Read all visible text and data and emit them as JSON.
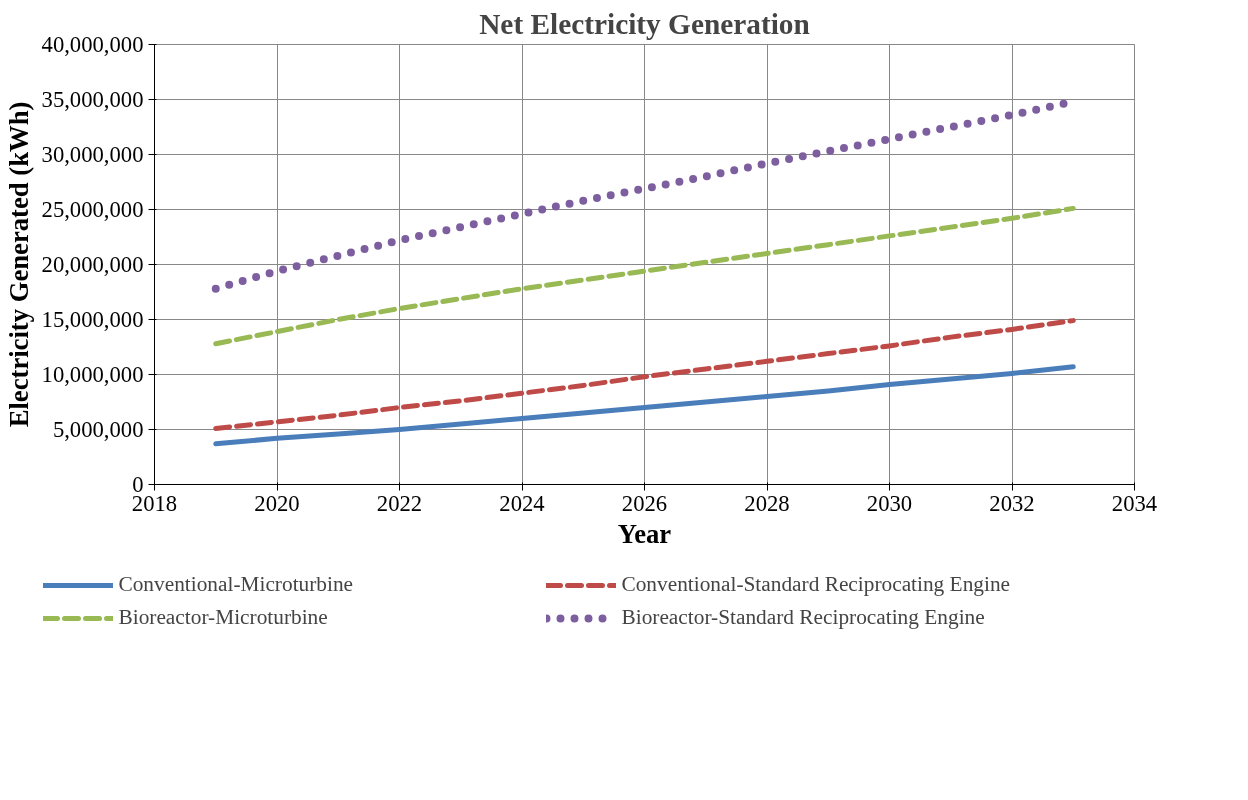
{
  "chart_data": {
    "type": "line",
    "title": "Net Electricity Generation",
    "xlabel": "Year",
    "ylabel": "Electricity Generated (kWh)",
    "x": [
      2019,
      2020,
      2021,
      2022,
      2023,
      2024,
      2025,
      2026,
      2027,
      2028,
      2029,
      2030,
      2031,
      2032,
      2033
    ],
    "series": [
      {
        "name": "Conventional-Microturbine",
        "color": "#4a7ebb",
        "line_style": "solid",
        "values": [
          3700000,
          4200000,
          4600000,
          5000000,
          5500000,
          6000000,
          6500000,
          7000000,
          7500000,
          8000000,
          8500000,
          9100000,
          9600000,
          10100000,
          10700000
        ]
      },
      {
        "name": "Conventional-Standard Reciprocating Engine",
        "color": "#be4b48",
        "line_style": "dashed",
        "values": [
          5100000,
          5700000,
          6300000,
          7000000,
          7600000,
          8300000,
          9000000,
          9800000,
          10500000,
          11200000,
          11900000,
          12600000,
          13400000,
          14100000,
          14900000
        ]
      },
      {
        "name": "Bioreactor-Microturbine",
        "color": "#98b954",
        "line_style": "dashed",
        "values": [
          12800000,
          13900000,
          15000000,
          16000000,
          16900000,
          17800000,
          18600000,
          19400000,
          20200000,
          21000000,
          21800000,
          22600000,
          23400000,
          24200000,
          25100000
        ]
      },
      {
        "name": "Bioreactor-Standard Reciprocating Engine",
        "color": "#7d5fa0",
        "line_style": "dotted",
        "values": [
          17800000,
          19400000,
          20800000,
          22200000,
          23400000,
          24600000,
          25800000,
          26900000,
          28000000,
          29200000,
          30300000,
          31400000,
          32500000,
          33600000,
          34800000
        ]
      }
    ],
    "xlim": [
      2018,
      2034
    ],
    "xticks": [
      2018,
      2020,
      2022,
      2024,
      2026,
      2028,
      2030,
      2032,
      2034
    ],
    "ylim": [
      0,
      40000000
    ],
    "yticks": [
      0,
      {
        "value": 5000000,
        "label": "5,000,000"
      },
      {
        "value": 10000000,
        "label": "10,000,000"
      },
      {
        "value": 15000000,
        "label": "15,000,000"
      },
      {
        "value": 20000000,
        "label": "20,000,000"
      },
      {
        "value": 25000000,
        "label": "25,000,000"
      },
      {
        "value": 30000000,
        "label": "30,000,000"
      },
      {
        "value": 35000000,
        "label": "35,000,000"
      },
      {
        "value": 40000000,
        "label": "40,000,000"
      }
    ],
    "grid": true,
    "legend": "bottom",
    "marker": "none"
  }
}
